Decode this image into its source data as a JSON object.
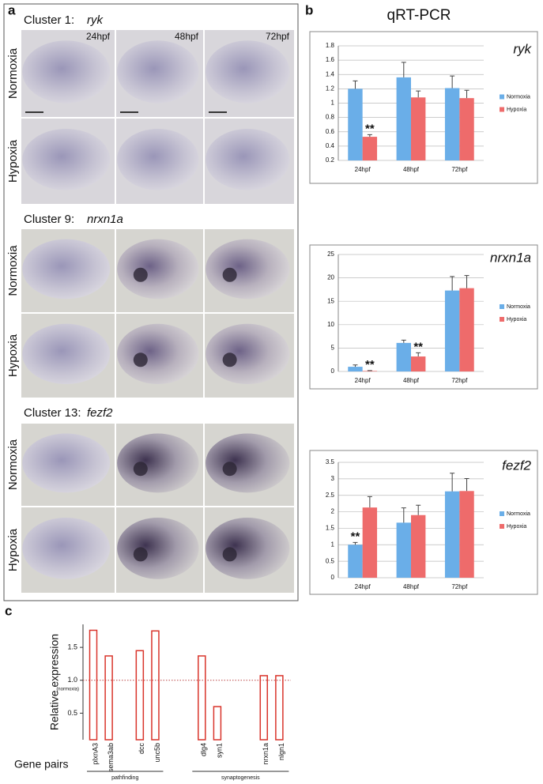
{
  "panel_labels": {
    "a": "a",
    "b": "b",
    "c": "c"
  },
  "panel_a": {
    "clusters": [
      {
        "label": "Cluster 1:",
        "gene": "ryk"
      },
      {
        "label": "Cluster 9:",
        "gene": "nrxn1a"
      },
      {
        "label": "Cluster 13:",
        "gene": "fezf2"
      }
    ],
    "timepoints": [
      "24hpf",
      "48hpf",
      "72hpf"
    ],
    "conditions": [
      "Normoxia",
      "Hypoxia"
    ]
  },
  "panel_b_title": "qRT-PCR",
  "chart_data": [
    {
      "type": "bar",
      "title": "ryk",
      "categories": [
        "24hpf",
        "48hpf",
        "72hpf"
      ],
      "series": [
        {
          "name": "Normoxia",
          "color": "#6aaee8",
          "values": [
            1.2,
            1.36,
            1.21
          ],
          "errors": [
            0.11,
            0.21,
            0.17
          ],
          "significance": [
            null,
            null,
            null
          ]
        },
        {
          "name": "Hypoxia",
          "color": "#ee6b6b",
          "values": [
            0.53,
            1.08,
            1.07
          ],
          "errors": [
            0.03,
            0.09,
            0.11
          ],
          "significance": [
            "**",
            null,
            null
          ]
        }
      ],
      "ylim": [
        0.2,
        1.8
      ],
      "yticks": [
        0.2,
        0.4,
        0.6,
        0.8,
        1,
        1.2,
        1.4,
        1.6,
        1.8
      ],
      "grid": true,
      "legend": "right"
    },
    {
      "type": "bar",
      "title": "nrxn1a",
      "categories": [
        "24hpf",
        "48hpf",
        "72hpf"
      ],
      "series": [
        {
          "name": "Normoxia",
          "color": "#6aaee8",
          "values": [
            1.0,
            6.1,
            17.3
          ],
          "errors": [
            0.4,
            0.6,
            3.0
          ],
          "significance": [
            null,
            null,
            null
          ]
        },
        {
          "name": "Hypoxia",
          "color": "#ee6b6b",
          "values": [
            0.1,
            3.2,
            17.8
          ],
          "errors": [
            0.1,
            0.8,
            2.7
          ],
          "significance": [
            "**",
            "**",
            null
          ]
        }
      ],
      "ylim": [
        0,
        25
      ],
      "yticks": [
        0,
        5,
        10,
        15,
        20,
        25
      ],
      "grid": true,
      "legend": "right"
    },
    {
      "type": "bar",
      "title": "fezf2",
      "categories": [
        "24hpf",
        "48hpf",
        "72hpf"
      ],
      "series": [
        {
          "name": "Normoxia",
          "color": "#6aaee8",
          "values": [
            1.0,
            1.67,
            2.62
          ],
          "errors": [
            0.07,
            0.45,
            0.55
          ],
          "significance": [
            "**",
            null,
            null
          ]
        },
        {
          "name": "Hypoxia",
          "color": "#ee6b6b",
          "values": [
            2.13,
            1.9,
            2.63
          ],
          "errors": [
            0.33,
            0.3,
            0.38
          ],
          "significance": [
            null,
            null,
            null
          ]
        }
      ],
      "ylim": [
        0,
        3.5
      ],
      "yticks": [
        0,
        0.5,
        1,
        1.5,
        2,
        2.5,
        3,
        3.5
      ],
      "grid": true,
      "legend": "right"
    },
    {
      "type": "bar",
      "bar_style": "outline",
      "color": "#d9342b",
      "y_label": "Relative expression",
      "x_label": "Gene pairs",
      "categories": [
        "plxnA3",
        "sema3ab",
        null,
        "dcc",
        "unc5b",
        null,
        null,
        "dlg4",
        "syn1",
        null,
        null,
        "nrxn1a",
        "nlgn1"
      ],
      "values": [
        1.76,
        1.37,
        null,
        1.45,
        1.75,
        null,
        null,
        1.37,
        0.6,
        null,
        null,
        1.07,
        1.07
      ],
      "groups": [
        "pathfinding",
        "synaptogenesis"
      ],
      "reference_line": {
        "value": 1,
        "label": "(normoxia)"
      },
      "ylim": [
        0,
        1.85
      ],
      "yticks": [
        0.5,
        {
          "value": 1,
          "label": "1.0"
        },
        1.5
      ],
      "grid": false
    }
  ]
}
